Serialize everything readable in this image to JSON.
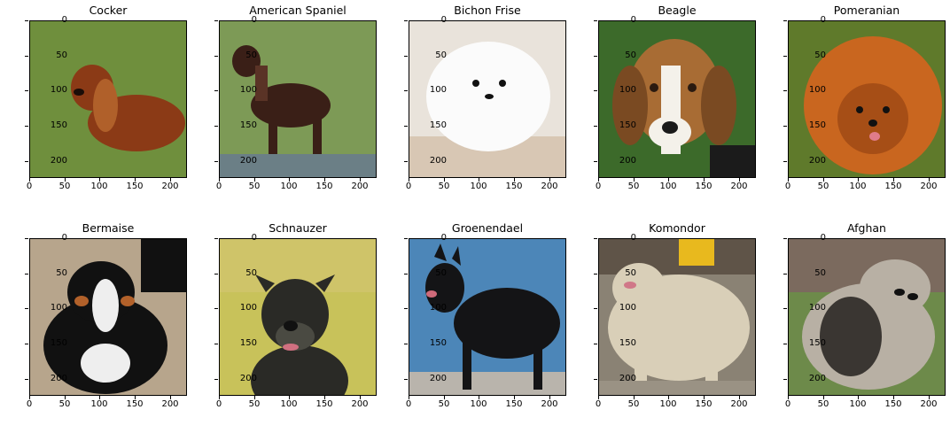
{
  "figure": {
    "panels": [
      {
        "title": "Cocker",
        "photo": "dog-cocker-spaniel-photo",
        "colors": {
          "bg": "#6f8f3d",
          "fg": "#8b3a16",
          "accent": "#b0602a"
        }
      },
      {
        "title": "American Spaniel",
        "photo": "dog-american-spaniel-photo",
        "colors": {
          "bg": "#7d9a56",
          "fg": "#3a1f17",
          "accent": "#5a3326"
        }
      },
      {
        "title": "Bichon Frise",
        "photo": "dog-bichon-frise-photo",
        "colors": {
          "bg": "#e9e3db",
          "fg": "#fbfbfb",
          "accent": "#111111"
        }
      },
      {
        "title": "Beagle",
        "photo": "dog-beagle-photo",
        "colors": {
          "bg": "#3c6a2a",
          "fg": "#a86c34",
          "accent": "#f4f1ea"
        }
      },
      {
        "title": "Pomeranian",
        "photo": "dog-pomeranian-photo",
        "colors": {
          "bg": "#5f7a2b",
          "fg": "#c9661f",
          "accent": "#7a3410"
        }
      },
      {
        "title": "Bermaise",
        "photo": "dog-bernese-photo",
        "colors": {
          "bg": "#b7a58c",
          "fg": "#111111",
          "accent": "#b2612a"
        }
      },
      {
        "title": "Schnauzer",
        "photo": "dog-schnauzer-photo",
        "colors": {
          "bg": "#c8c25a",
          "fg": "#2a2a26",
          "accent": "#4a4a42"
        }
      },
      {
        "title": "Groenendael",
        "photo": "dog-groenendael-photo",
        "colors": {
          "bg": "#4c86b8",
          "fg": "#141416",
          "accent": "#2c2c30"
        }
      },
      {
        "title": "Komondor",
        "photo": "dog-komondor-photo",
        "colors": {
          "bg": "#8a8274",
          "fg": "#d9cfb8",
          "accent": "#e8b91e"
        }
      },
      {
        "title": "Afghan",
        "photo": "dog-afghan-photo",
        "colors": {
          "bg": "#6d8a4a",
          "fg": "#b8b0a4",
          "accent": "#3a3632"
        }
      }
    ],
    "y_ticks": [
      "0",
      "50",
      "100",
      "150",
      "200"
    ],
    "x_ticks": [
      "0",
      "50",
      "100",
      "150",
      "200"
    ],
    "axis_max": 224
  }
}
